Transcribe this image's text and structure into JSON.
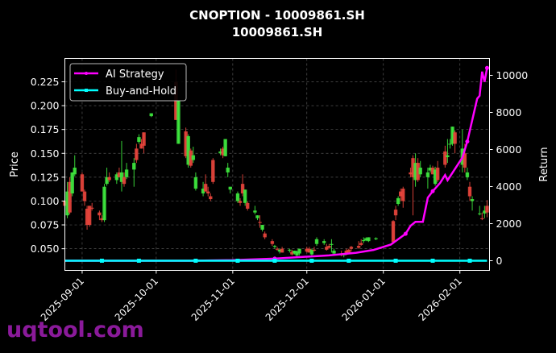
{
  "chart_data": {
    "type": "candlestick+line",
    "title": "CNOPTION - 10009861.SH",
    "subtitle": "10009861.SH",
    "ylabel": "Price",
    "y2label": "Return",
    "xlim": [
      "2025-08-25",
      "2026-02-13"
    ],
    "ylim": [
      0.0273,
      0.2495
    ],
    "y2lim": [
      -522,
      10913
    ],
    "grid": true,
    "legend_position": "top-left",
    "x_ticks": [
      "2025-09-01",
      "2025-10-01",
      "2025-11-01",
      "2025-12-01",
      "2026-01-01",
      "2026-02-01"
    ],
    "y_ticks": [
      "0.050",
      "0.075",
      "0.100",
      "0.125",
      "0.150",
      "0.175",
      "0.200",
      "0.225"
    ],
    "y_tick_values": [
      0.05,
      0.075,
      0.1,
      0.125,
      0.15,
      0.175,
      0.2,
      0.225
    ],
    "y2_ticks": [
      "0",
      "2000",
      "4000",
      "6000",
      "8000",
      "10000"
    ],
    "y2_tick_values": [
      0,
      2000,
      4000,
      6000,
      8000,
      10000
    ],
    "colors": {
      "up": "#3ee83e",
      "down": "#e8453c",
      "ai": "#ff00ff",
      "bh": "#00ffff"
    },
    "candles_columns": [
      "date",
      "open",
      "high",
      "low",
      "close"
    ],
    "candles": [
      [
        "2025-08-25",
        0.1,
        0.118,
        0.09,
        0.095
      ],
      [
        "2025-08-26",
        0.085,
        0.12,
        0.082,
        0.11
      ],
      [
        "2025-08-27",
        0.12,
        0.125,
        0.086,
        0.088
      ],
      [
        "2025-08-28",
        0.108,
        0.13,
        0.105,
        0.13
      ],
      [
        "2025-08-29",
        0.128,
        0.148,
        0.126,
        0.135
      ],
      [
        "2025-09-01",
        0.128,
        0.13,
        0.11,
        0.11
      ],
      [
        "2025-09-02",
        0.11,
        0.112,
        0.095,
        0.1
      ],
      [
        "2025-09-03",
        0.092,
        0.095,
        0.07,
        0.075
      ],
      [
        "2025-09-04",
        0.095,
        0.095,
        0.073,
        0.075
      ],
      [
        "2025-09-05",
        0.093,
        0.098,
        0.09,
        0.092
      ],
      [
        "2025-09-08",
        0.088,
        0.09,
        0.08,
        0.085
      ],
      [
        "2025-09-09",
        0.082,
        0.085,
        0.078,
        0.08
      ],
      [
        "2025-09-10",
        0.08,
        0.118,
        0.078,
        0.115
      ],
      [
        "2025-09-11",
        0.118,
        0.135,
        0.116,
        0.125
      ],
      [
        "2025-09-12",
        0.125,
        0.13,
        0.12,
        0.122
      ],
      [
        "2025-09-15",
        0.122,
        0.13,
        0.118,
        0.128
      ],
      [
        "2025-09-16",
        0.13,
        0.135,
        0.125,
        0.125
      ],
      [
        "2025-09-17",
        0.12,
        0.163,
        0.11,
        0.13
      ],
      [
        "2025-09-18",
        0.125,
        0.13,
        0.115,
        0.118
      ],
      [
        "2025-09-19",
        0.125,
        0.14,
        0.123,
        0.133
      ],
      [
        "2025-09-22",
        0.133,
        0.145,
        0.115,
        0.14
      ],
      [
        "2025-09-23",
        0.155,
        0.16,
        0.14,
        0.143
      ],
      [
        "2025-09-24",
        0.162,
        0.17,
        0.16,
        0.167
      ],
      [
        "2025-09-25",
        0.16,
        0.165,
        0.155,
        0.155
      ],
      [
        "2025-09-26",
        0.172,
        0.172,
        0.15,
        0.158
      ],
      [
        "2025-09-29",
        0.189,
        0.192,
        0.188,
        0.192
      ],
      [
        "2025-10-09",
        0.225,
        0.238,
        0.185,
        0.185
      ],
      [
        "2025-10-10",
        0.16,
        0.205,
        0.16,
        0.205
      ],
      [
        "2025-10-13",
        0.173,
        0.177,
        0.145,
        0.147
      ],
      [
        "2025-10-14",
        0.138,
        0.17,
        0.135,
        0.168
      ],
      [
        "2025-10-15",
        0.153,
        0.155,
        0.135,
        0.137
      ],
      [
        "2025-10-16",
        0.143,
        0.157,
        0.14,
        0.148
      ],
      [
        "2025-10-17",
        0.113,
        0.13,
        0.111,
        0.125
      ],
      [
        "2025-10-20",
        0.108,
        0.12,
        0.105,
        0.113
      ],
      [
        "2025-10-21",
        0.118,
        0.128,
        0.11,
        0.11
      ],
      [
        "2025-10-22",
        0.11,
        0.115,
        0.105,
        0.108
      ],
      [
        "2025-10-23",
        0.105,
        0.108,
        0.1,
        0.102
      ],
      [
        "2025-10-24",
        0.143,
        0.145,
        0.118,
        0.12
      ],
      [
        "2025-10-27",
        0.15,
        0.155,
        0.148,
        0.152
      ],
      [
        "2025-10-28",
        0.155,
        0.157,
        0.145,
        0.148
      ],
      [
        "2025-10-29",
        0.147,
        0.165,
        0.147,
        0.165
      ],
      [
        "2025-10-30",
        0.13,
        0.14,
        0.125,
        0.135
      ],
      [
        "2025-10-31",
        0.112,
        0.115,
        0.108,
        0.115
      ],
      [
        "2025-11-03",
        0.1,
        0.11,
        0.098,
        0.108
      ],
      [
        "2025-11-04",
        0.1,
        0.103,
        0.095,
        0.098
      ],
      [
        "2025-11-05",
        0.118,
        0.128,
        0.105,
        0.108
      ],
      [
        "2025-11-06",
        0.098,
        0.112,
        0.095,
        0.112
      ],
      [
        "2025-11-07",
        0.098,
        0.1,
        0.09,
        0.092
      ],
      [
        "2025-11-10",
        0.088,
        0.095,
        0.086,
        0.09
      ],
      [
        "2025-11-11",
        0.082,
        0.085,
        0.08,
        0.085
      ],
      [
        "2025-11-12",
        0.078,
        0.085,
        0.072,
        0.077
      ],
      [
        "2025-11-13",
        0.07,
        0.075,
        0.068,
        0.075
      ],
      [
        "2025-11-14",
        0.066,
        0.068,
        0.06,
        0.062
      ],
      [
        "2025-11-17",
        0.058,
        0.06,
        0.053,
        0.055
      ],
      [
        "2025-11-18",
        0.052,
        0.054,
        0.05,
        0.053
      ],
      [
        "2025-11-19",
        0.05,
        0.052,
        0.048,
        0.049
      ],
      [
        "2025-11-20",
        0.047,
        0.05,
        0.045,
        0.049
      ],
      [
        "2025-11-21",
        0.05,
        0.052,
        0.046,
        0.046
      ],
      [
        "2025-11-24",
        0.048,
        0.05,
        0.046,
        0.049
      ],
      [
        "2025-11-25",
        0.047,
        0.049,
        0.043,
        0.044
      ],
      [
        "2025-11-26",
        0.045,
        0.048,
        0.044,
        0.048
      ],
      [
        "2025-11-27",
        0.043,
        0.048,
        0.042,
        0.047
      ],
      [
        "2025-11-28",
        0.045,
        0.05,
        0.043,
        0.05
      ],
      [
        "2025-12-01",
        0.05,
        0.052,
        0.046,
        0.047
      ],
      [
        "2025-12-02",
        0.05,
        0.052,
        0.046,
        0.046
      ],
      [
        "2025-12-03",
        0.044,
        0.05,
        0.043,
        0.049
      ],
      [
        "2025-12-04",
        0.049,
        0.052,
        0.047,
        0.048
      ],
      [
        "2025-12-05",
        0.055,
        0.062,
        0.053,
        0.06
      ],
      [
        "2025-12-08",
        0.056,
        0.06,
        0.054,
        0.058
      ],
      [
        "2025-12-09",
        0.052,
        0.055,
        0.048,
        0.049
      ],
      [
        "2025-12-10",
        0.053,
        0.055,
        0.05,
        0.051
      ],
      [
        "2025-12-11",
        0.054,
        0.06,
        0.046,
        0.055
      ],
      [
        "2025-12-12",
        0.045,
        0.05,
        0.043,
        0.048
      ],
      [
        "2025-12-15",
        0.045,
        0.048,
        0.042,
        0.043
      ],
      [
        "2025-12-16",
        0.044,
        0.045,
        0.041,
        0.044
      ],
      [
        "2025-12-17",
        0.048,
        0.05,
        0.043,
        0.044
      ],
      [
        "2025-12-18",
        0.049,
        0.05,
        0.046,
        0.046
      ],
      [
        "2025-12-19",
        0.052,
        0.053,
        0.047,
        0.05
      ],
      [
        "2025-12-22",
        0.053,
        0.058,
        0.05,
        0.051
      ],
      [
        "2025-12-23",
        0.056,
        0.06,
        0.053,
        0.054
      ],
      [
        "2025-12-24",
        0.058,
        0.062,
        0.056,
        0.059
      ],
      [
        "2025-12-25",
        0.059,
        0.062,
        0.058,
        0.061
      ],
      [
        "2025-12-26",
        0.058,
        0.062,
        0.057,
        0.062
      ],
      [
        "2025-12-29",
        0.06,
        0.062,
        0.059,
        0.061
      ],
      [
        "2026-01-05",
        0.079,
        0.08,
        0.055,
        0.057
      ],
      [
        "2026-01-06",
        0.091,
        0.095,
        0.08,
        0.085
      ],
      [
        "2026-01-07",
        0.097,
        0.105,
        0.095,
        0.103
      ],
      [
        "2026-01-08",
        0.11,
        0.113,
        0.1,
        0.105
      ],
      [
        "2026-01-09",
        0.113,
        0.115,
        0.093,
        0.1
      ],
      [
        "2026-01-12",
        0.13,
        0.135,
        0.125,
        0.128
      ],
      [
        "2026-01-13",
        0.145,
        0.148,
        0.085,
        0.125
      ],
      [
        "2026-01-14",
        0.122,
        0.15,
        0.115,
        0.14
      ],
      [
        "2026-01-15",
        0.14,
        0.145,
        0.12,
        0.122
      ],
      [
        "2026-01-16",
        0.128,
        0.142,
        0.125,
        0.135
      ],
      [
        "2026-01-19",
        0.125,
        0.135,
        0.113,
        0.13
      ],
      [
        "2026-01-20",
        0.132,
        0.138,
        0.13,
        0.135
      ],
      [
        "2026-01-21",
        0.135,
        0.137,
        0.128,
        0.128
      ],
      [
        "2026-01-22",
        0.118,
        0.136,
        0.116,
        0.133
      ],
      [
        "2026-01-23",
        0.135,
        0.142,
        0.12,
        0.122
      ],
      [
        "2026-01-26",
        0.152,
        0.158,
        0.135,
        0.138
      ],
      [
        "2026-01-27",
        0.146,
        0.165,
        0.14,
        0.148
      ],
      [
        "2026-01-28",
        0.16,
        0.165,
        0.155,
        0.16
      ],
      [
        "2026-01-29",
        0.16,
        0.178,
        0.158,
        0.178
      ],
      [
        "2026-01-30",
        0.172,
        0.174,
        0.15,
        0.16
      ],
      [
        "2026-02-02",
        0.138,
        0.175,
        0.13,
        0.155
      ],
      [
        "2026-02-03",
        0.15,
        0.16,
        0.13,
        0.135
      ],
      [
        "2026-02-04",
        0.125,
        0.135,
        0.122,
        0.13
      ],
      [
        "2026-02-05",
        0.115,
        0.12,
        0.1,
        0.105
      ],
      [
        "2026-02-06",
        0.1,
        0.105,
        0.09,
        0.102
      ],
      [
        "2026-02-09",
        0.087,
        0.095,
        0.085,
        0.087
      ],
      [
        "2026-02-10",
        0.082,
        0.088,
        0.08,
        0.081
      ],
      [
        "2026-02-11",
        0.087,
        0.095,
        0.082,
        0.09
      ],
      [
        "2026-02-12",
        0.095,
        0.101,
        0.083,
        0.088
      ]
    ],
    "series": [
      {
        "name": "AI Strategy",
        "points": [
          [
            "2025-08-25",
            0
          ],
          [
            "2025-09-15",
            0
          ],
          [
            "2025-10-15",
            0
          ],
          [
            "2025-11-01",
            30
          ],
          [
            "2025-11-18",
            115
          ],
          [
            "2025-12-10",
            290
          ],
          [
            "2025-12-21",
            430
          ],
          [
            "2025-12-28",
            580
          ],
          [
            "2026-01-04",
            870
          ],
          [
            "2026-01-10",
            1450
          ],
          [
            "2026-01-12",
            1880
          ],
          [
            "2026-01-14",
            2100
          ],
          [
            "2026-01-17",
            2100
          ],
          [
            "2026-01-19",
            3400
          ],
          [
            "2026-01-21",
            3750
          ],
          [
            "2026-01-24",
            4200
          ],
          [
            "2026-01-26",
            4620
          ],
          [
            "2026-01-27",
            4340
          ],
          [
            "2026-02-02",
            5560
          ],
          [
            "2026-02-04",
            6430
          ],
          [
            "2026-02-08",
            8740
          ],
          [
            "2026-02-09",
            8900
          ],
          [
            "2026-02-10",
            10200
          ],
          [
            "2026-02-11",
            9650
          ],
          [
            "2026-02-12",
            10400
          ]
        ]
      },
      {
        "name": "Buy-and-Hold",
        "points": [
          [
            "2025-08-25",
            0
          ],
          [
            "2025-09-09",
            0
          ],
          [
            "2025-09-24",
            0
          ],
          [
            "2025-10-17",
            0
          ],
          [
            "2025-11-03",
            0
          ],
          [
            "2025-11-18",
            0
          ],
          [
            "2025-12-03",
            0
          ],
          [
            "2025-12-18",
            0
          ],
          [
            "2026-01-06",
            0
          ],
          [
            "2026-01-21",
            0
          ],
          [
            "2026-02-05",
            0
          ],
          [
            "2026-02-12",
            0
          ]
        ]
      }
    ]
  },
  "watermark": "uqtool.com"
}
